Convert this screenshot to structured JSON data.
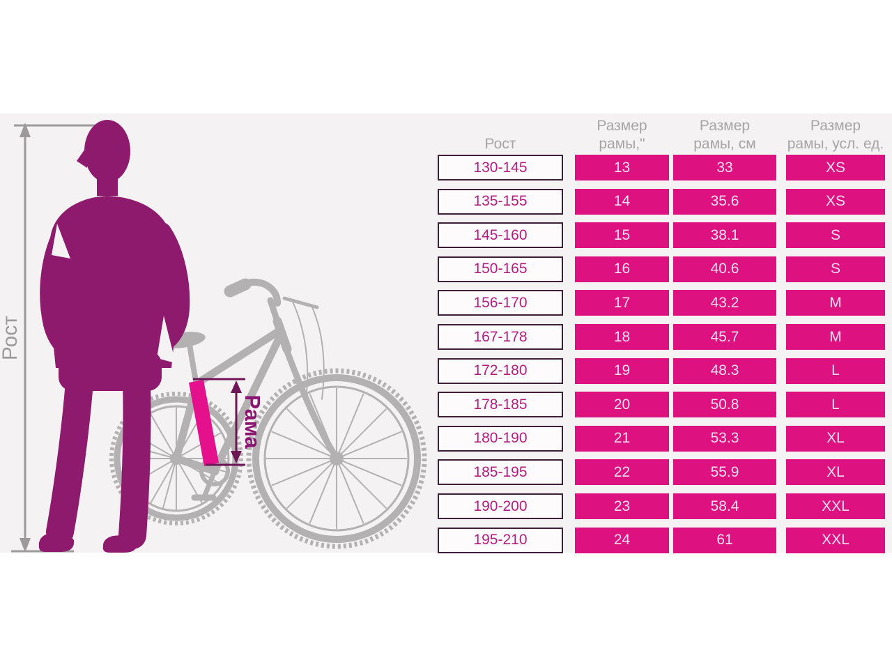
{
  "illustration": {
    "height_label": "Рост",
    "frame_label": "Рама"
  },
  "table": {
    "headers": [
      {
        "line1": "",
        "line2": "Рост"
      },
      {
        "line1": "Размер",
        "line2": "рамы,\""
      },
      {
        "line1": "Размер",
        "line2": "рамы, см"
      },
      {
        "line1": "Размер",
        "line2": "рамы, усл. ед."
      }
    ],
    "rows": [
      {
        "height": "130-145",
        "inches": "13",
        "cm": "33",
        "size": "XS"
      },
      {
        "height": "135-155",
        "inches": "14",
        "cm": "35.6",
        "size": "XS"
      },
      {
        "height": "145-160",
        "inches": "15",
        "cm": "38.1",
        "size": "S"
      },
      {
        "height": "150-165",
        "inches": "16",
        "cm": "40.6",
        "size": "S"
      },
      {
        "height": "156-170",
        "inches": "17",
        "cm": "43.2",
        "size": "M"
      },
      {
        "height": "167-178",
        "inches": "18",
        "cm": "45.7",
        "size": "M"
      },
      {
        "height": "172-180",
        "inches": "19",
        "cm": "48.3",
        "size": "L"
      },
      {
        "height": "178-185",
        "inches": "20",
        "cm": "50.8",
        "size": "L"
      },
      {
        "height": "180-190",
        "inches": "21",
        "cm": "53.3",
        "size": "XL"
      },
      {
        "height": "185-195",
        "inches": "22",
        "cm": "55.9",
        "size": "XL"
      },
      {
        "height": "190-200",
        "inches": "23",
        "cm": "58.4",
        "size": "XXL"
      },
      {
        "height": "195-210",
        "inches": "24",
        "cm": "61",
        "size": "XXL"
      }
    ]
  },
  "colors": {
    "band-bg": "#f4f2f3",
    "cell-bg": "#de1180",
    "cell-text": "#f8dff0",
    "range-bg": "#fdfbfc",
    "range-text": "#b51c7f",
    "range-border": "#3f1f38",
    "header-text": "#a8a4a6",
    "person": "#8e1a6e",
    "bike": "#b4b1b2",
    "frame-highlight": "#e5108c",
    "frame-annotation": "#6e1555",
    "frame-label-color": "#8c1570",
    "height-annotation": "#9e9a9c"
  },
  "chart_data": {
    "type": "table",
    "columns": [
      "Рост",
      "Размер рамы,\"",
      "Размер рамы, см",
      "Размер рамы, усл. ед."
    ],
    "rows": [
      [
        "130-145",
        13,
        33,
        "XS"
      ],
      [
        "135-155",
        14,
        35.6,
        "XS"
      ],
      [
        "145-160",
        15,
        38.1,
        "S"
      ],
      [
        "150-165",
        16,
        40.6,
        "S"
      ],
      [
        "156-170",
        17,
        43.2,
        "M"
      ],
      [
        "167-178",
        18,
        45.7,
        "M"
      ],
      [
        "172-180",
        19,
        48.3,
        "L"
      ],
      [
        "178-185",
        20,
        50.8,
        "L"
      ],
      [
        "180-190",
        21,
        53.3,
        "XL"
      ],
      [
        "185-195",
        22,
        55.9,
        "XL"
      ],
      [
        "190-200",
        23,
        58.4,
        "XXL"
      ],
      [
        "195-210",
        24,
        61,
        "XXL"
      ]
    ],
    "annotations": [
      "Рост",
      "Рама"
    ],
    "legend_position": "none",
    "grid": false
  }
}
